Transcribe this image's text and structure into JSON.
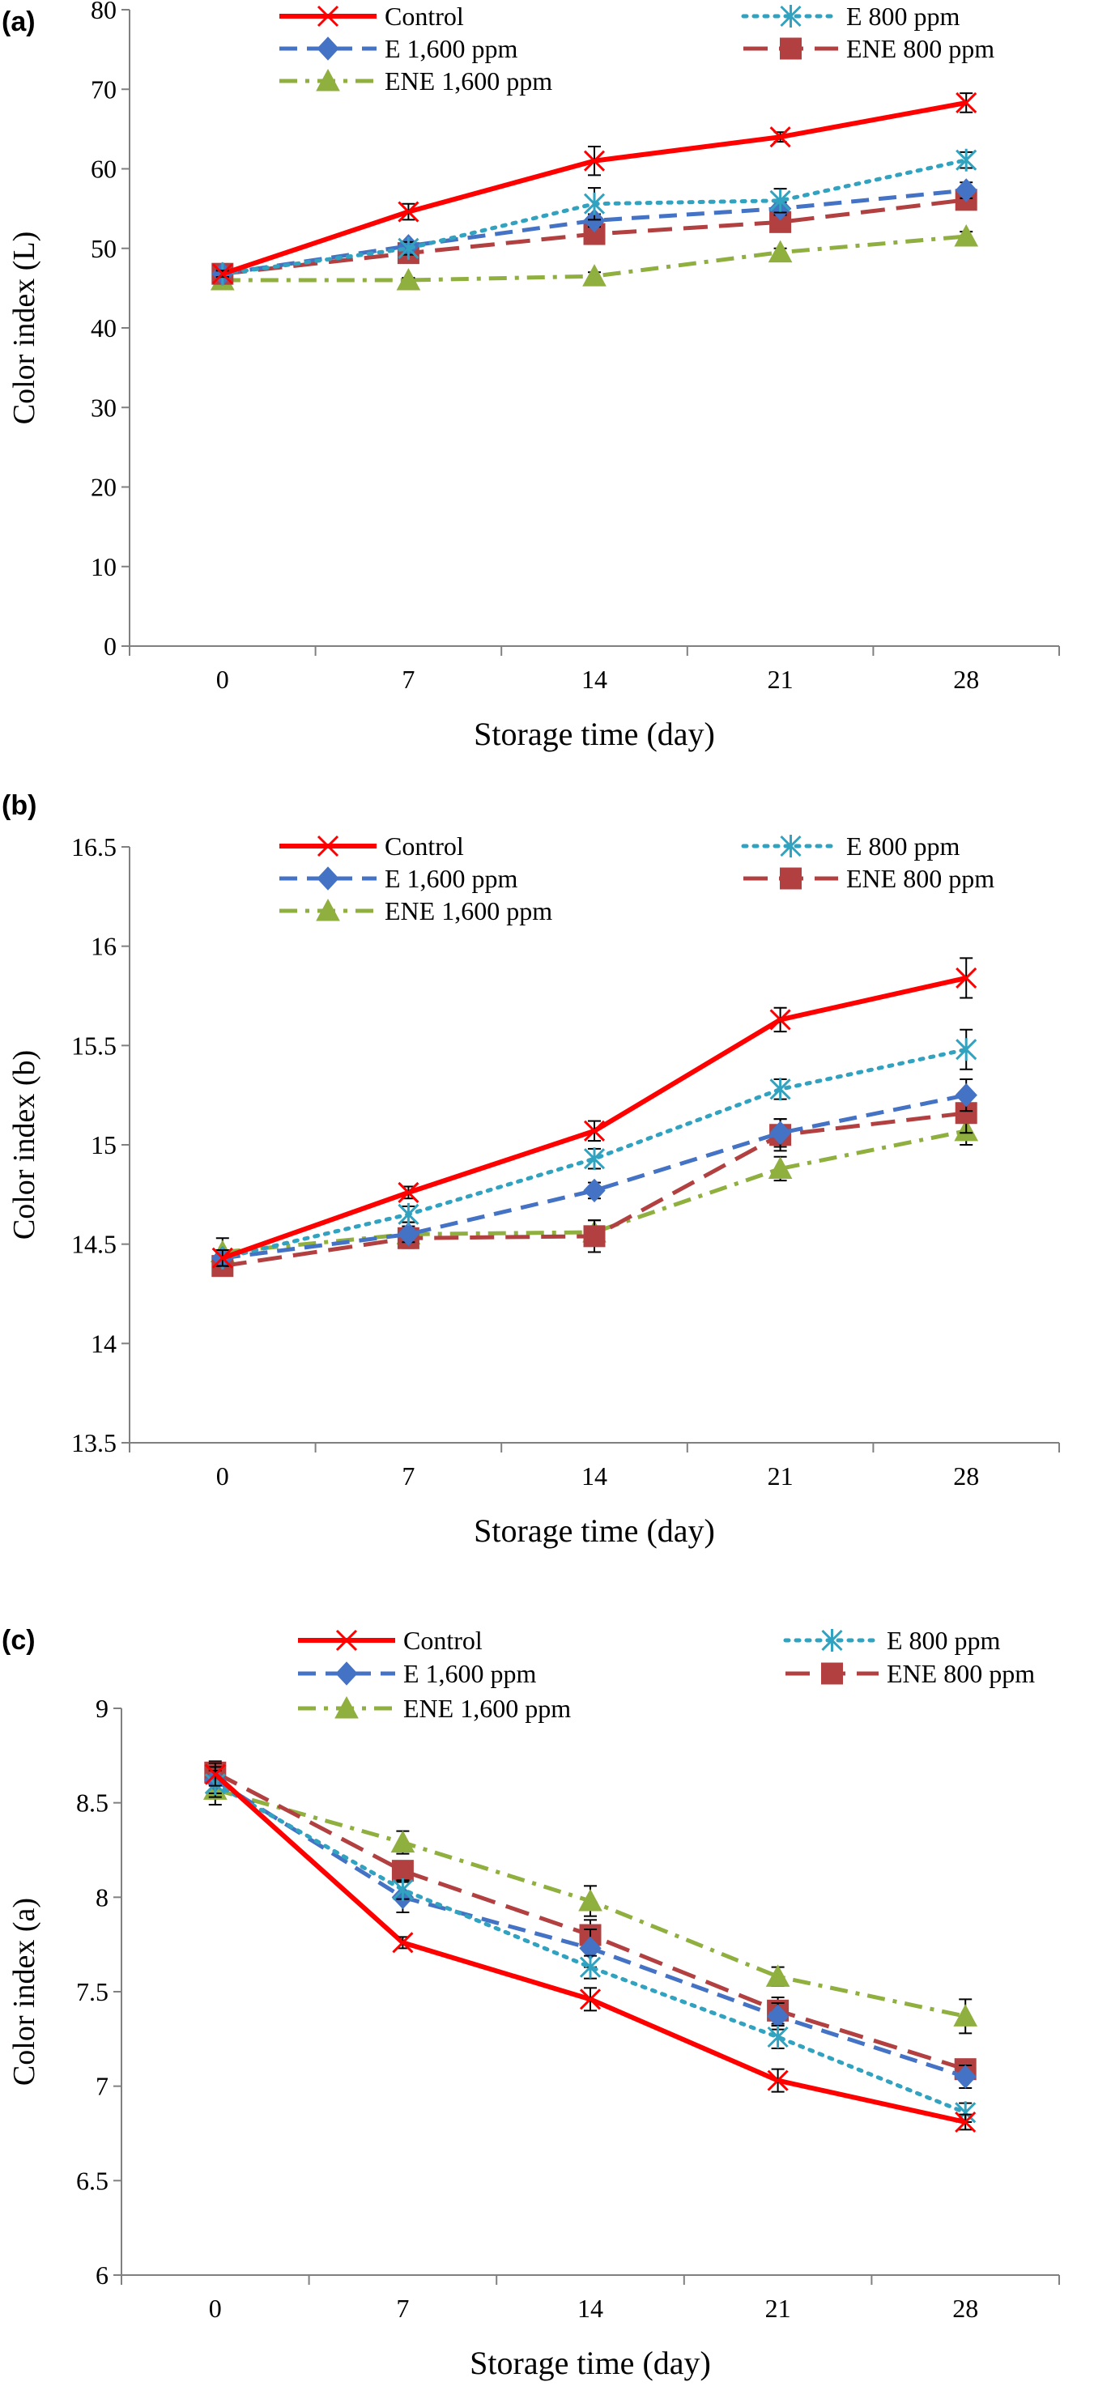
{
  "styles": {
    "Control": {
      "color": "#ff0000",
      "marker": "x",
      "dash": "solid"
    },
    "E 1,600 ppm": {
      "color": "#4472c4",
      "marker": "diamond",
      "dash": "dash"
    },
    "ENE 1,600 ppm": {
      "color": "#8faf3f",
      "marker": "triangle",
      "dash": "dashdot"
    },
    "E 800 ppm": {
      "color": "#31a2bf",
      "marker": "star",
      "dash": "dot"
    },
    "ENE 800 ppm": {
      "color": "#b24040",
      "marker": "square",
      "dash": "longdash"
    }
  },
  "chart_data": [
    {
      "type": "line",
      "panel_label": "(a)",
      "xlabel": "Storage time (day)",
      "ylabel": "Color index (L)",
      "categories": [
        "0",
        "7",
        "14",
        "21",
        "28"
      ],
      "ylim": [
        0,
        80
      ],
      "yticks": [
        "0",
        "10",
        "20",
        "30",
        "40",
        "50",
        "60",
        "70",
        "80"
      ],
      "legend_position": "top",
      "series": [
        {
          "name": "Control",
          "values": [
            46.8,
            54.6,
            61.0,
            64.0,
            68.3
          ],
          "errors": [
            0.4,
            1.0,
            1.8,
            0.6,
            1.2
          ]
        },
        {
          "name": "E 1,600 ppm",
          "values": [
            46.8,
            50.3,
            53.5,
            55.0,
            57.3
          ],
          "errors": [
            0.4,
            0.5,
            0.8,
            0.8,
            1.0
          ]
        },
        {
          "name": "ENE 1,600 ppm",
          "values": [
            46.0,
            46.0,
            46.5,
            49.5,
            51.5
          ],
          "errors": [
            0.3,
            0.3,
            0.5,
            0.5,
            0.6
          ]
        },
        {
          "name": "E 800 ppm",
          "values": [
            46.8,
            50.0,
            55.6,
            56.0,
            61.1
          ],
          "errors": [
            0.4,
            0.8,
            2.0,
            1.5,
            1.0
          ]
        },
        {
          "name": "ENE 800 ppm",
          "values": [
            46.8,
            49.4,
            51.8,
            53.3,
            56.1
          ],
          "errors": [
            0.4,
            0.5,
            0.8,
            0.8,
            1.0
          ]
        }
      ]
    },
    {
      "type": "line",
      "panel_label": "(b)",
      "xlabel": "Storage time (day)",
      "ylabel": "Color index (b)",
      "categories": [
        "0",
        "7",
        "14",
        "21",
        "28"
      ],
      "ylim": [
        13.5,
        16.5
      ],
      "yticks": [
        "13.5",
        "14",
        "14.5",
        "15",
        "15.5",
        "16",
        "16.5"
      ],
      "legend_position": "top",
      "series": [
        {
          "name": "Control",
          "values": [
            14.43,
            14.76,
            15.07,
            15.63,
            15.84
          ],
          "errors": [
            0.04,
            0.03,
            0.05,
            0.06,
            0.1
          ]
        },
        {
          "name": "E 1,600 ppm",
          "values": [
            14.43,
            14.55,
            14.77,
            15.06,
            15.25
          ],
          "errors": [
            0.04,
            0.04,
            0.04,
            0.07,
            0.08
          ]
        },
        {
          "name": "ENE 1,600 ppm",
          "values": [
            14.46,
            14.55,
            14.56,
            14.88,
            15.07
          ],
          "errors": [
            0.07,
            0.06,
            0.06,
            0.06,
            0.07
          ]
        },
        {
          "name": "E 800 ppm",
          "values": [
            14.43,
            14.65,
            14.93,
            15.28,
            15.48
          ],
          "errors": [
            0.04,
            0.04,
            0.05,
            0.05,
            0.1
          ]
        },
        {
          "name": "ENE 800 ppm",
          "values": [
            14.39,
            14.53,
            14.54,
            15.05,
            15.16
          ],
          "errors": [
            0.04,
            0.05,
            0.08,
            0.08,
            0.1
          ]
        }
      ]
    },
    {
      "type": "line",
      "panel_label": "(c)",
      "xlabel": "Storage time (day)",
      "ylabel": "Color index (a)",
      "categories": [
        "0",
        "7",
        "14",
        "21",
        "28"
      ],
      "ylim": [
        6,
        9
      ],
      "yticks": [
        "6",
        "6.5",
        "7",
        "7.5",
        "8",
        "8.5",
        "9"
      ],
      "legend_position": "top",
      "series": [
        {
          "name": "Control",
          "values": [
            8.65,
            7.76,
            7.46,
            7.03,
            6.81
          ],
          "errors": [
            0.06,
            0.03,
            0.06,
            0.06,
            0.04
          ]
        },
        {
          "name": "E 1,600 ppm",
          "values": [
            8.62,
            8.0,
            7.73,
            7.37,
            7.05
          ],
          "errors": [
            0.07,
            0.08,
            0.1,
            0.07,
            0.06
          ]
        },
        {
          "name": "ENE 1,600 ppm",
          "values": [
            8.57,
            8.29,
            7.98,
            7.58,
            7.37
          ],
          "errors": [
            0.08,
            0.06,
            0.08,
            0.05,
            0.09
          ]
        },
        {
          "name": "E 800 ppm",
          "values": [
            8.6,
            8.04,
            7.63,
            7.26,
            6.86
          ],
          "errors": [
            0.07,
            0.05,
            0.06,
            0.06,
            0.05
          ]
        },
        {
          "name": "ENE 800 ppm",
          "values": [
            8.66,
            8.14,
            7.8,
            7.4,
            7.09
          ],
          "errors": [
            0.06,
            0.05,
            0.08,
            0.07,
            0.05
          ]
        }
      ]
    }
  ]
}
